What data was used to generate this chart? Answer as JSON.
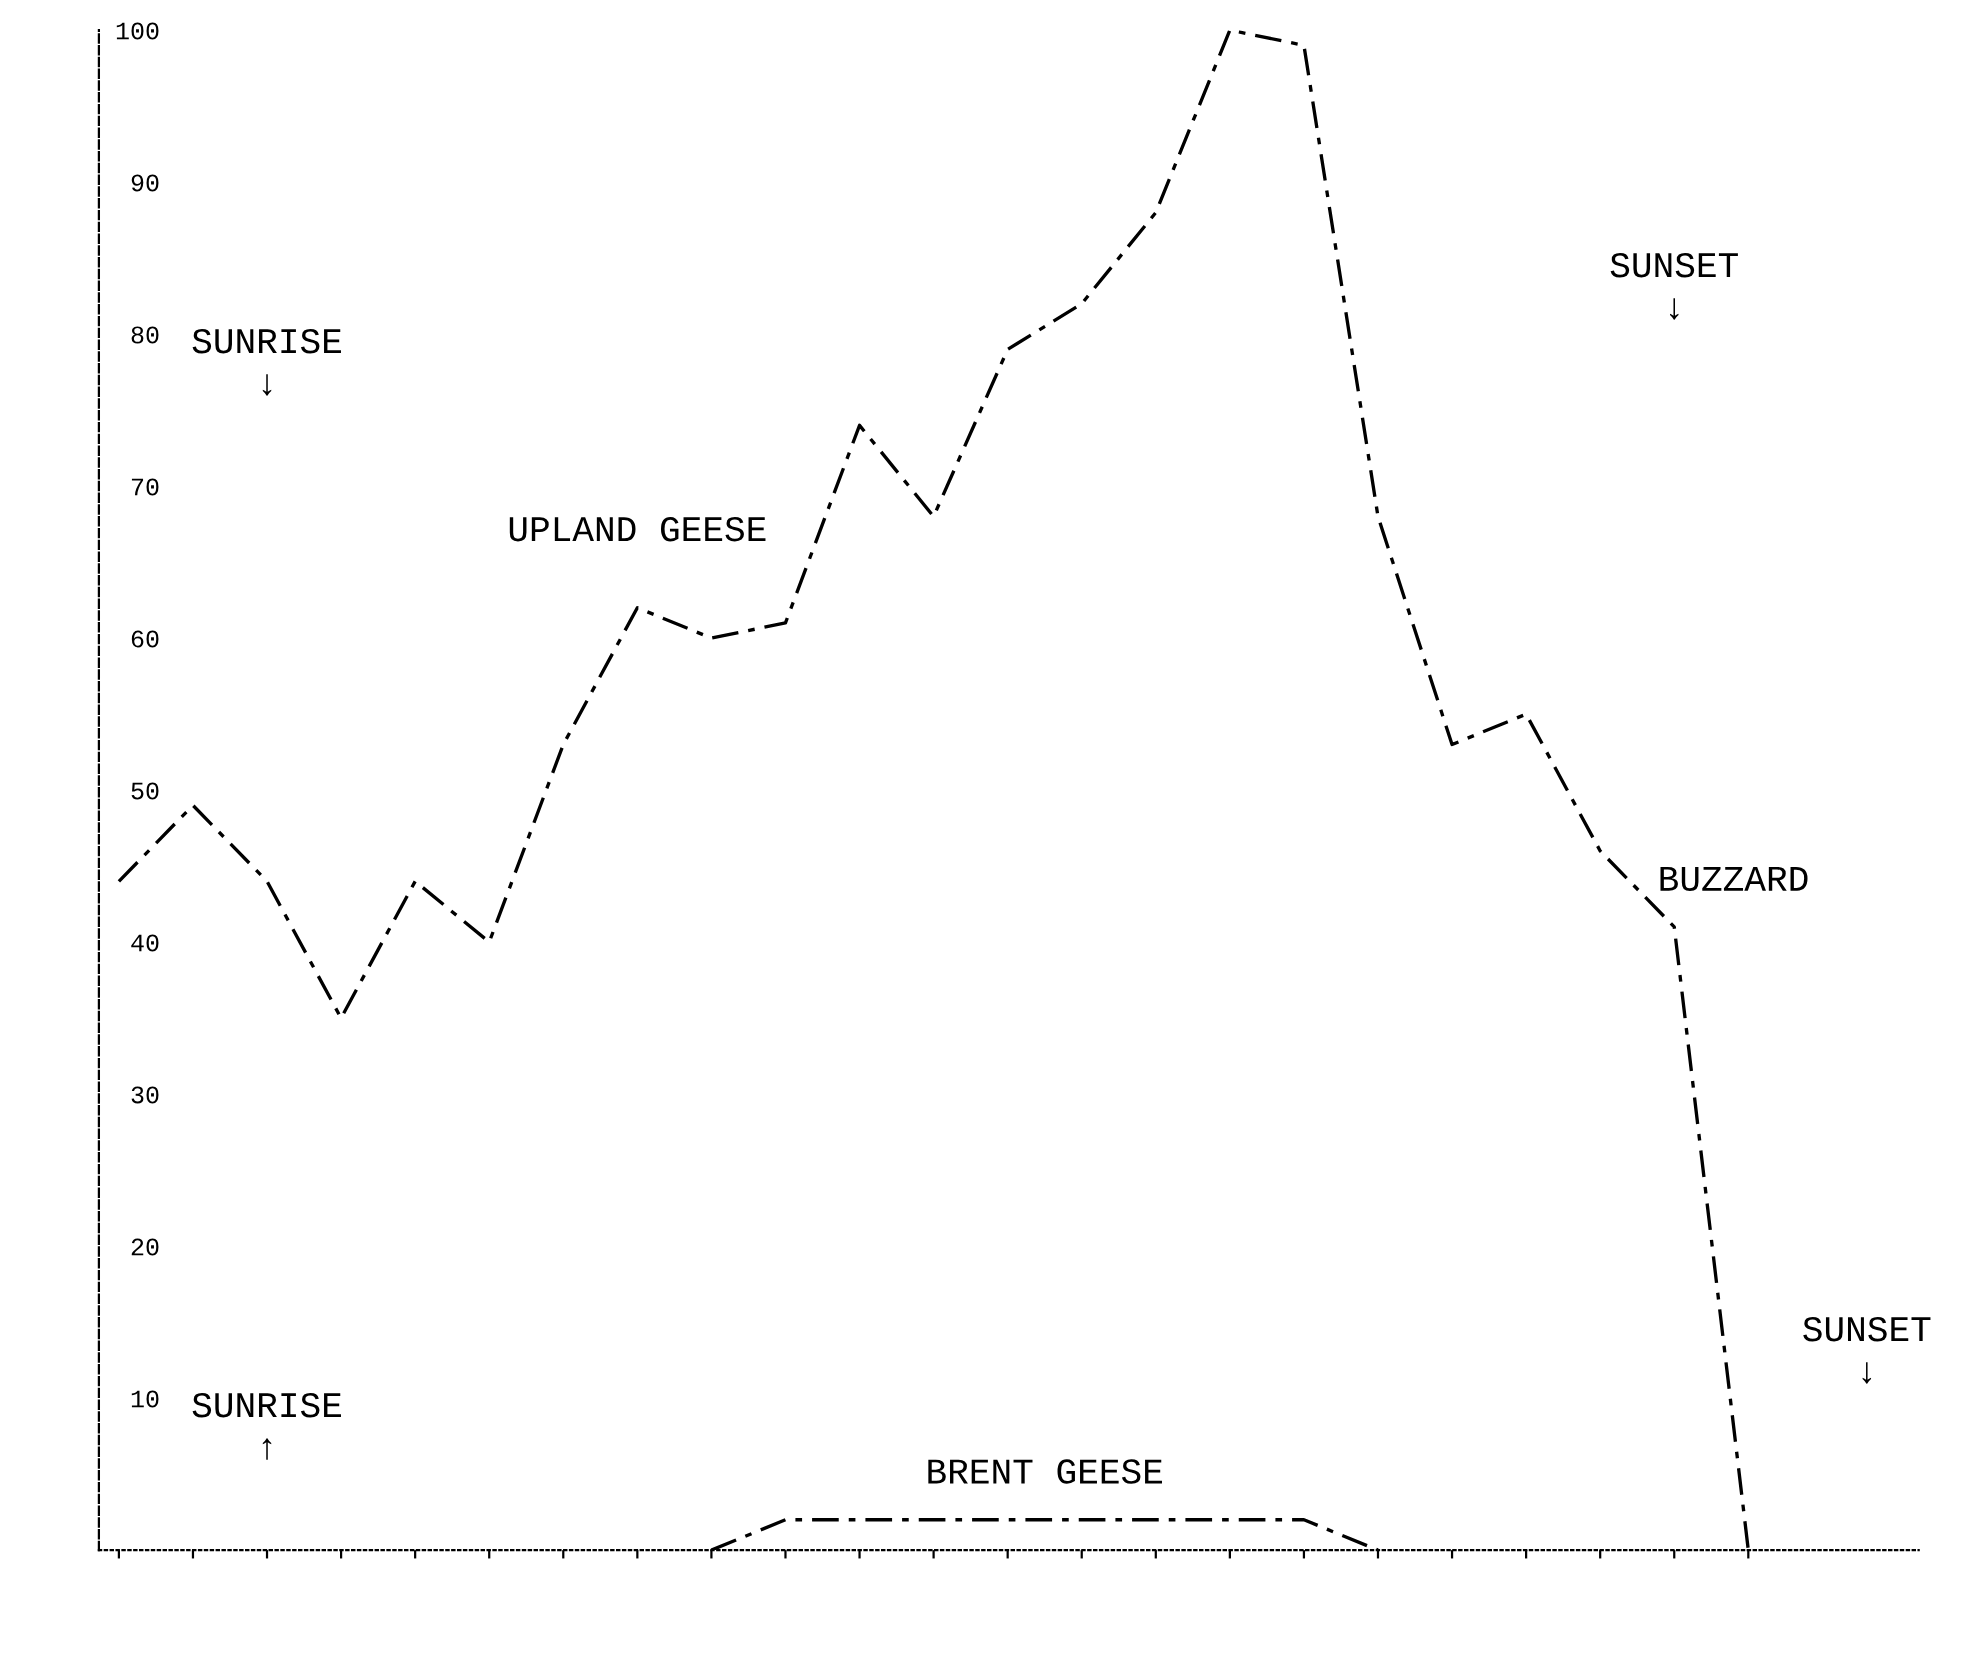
{
  "chart_data": {
    "type": "line",
    "categories": [
      null,
      null,
      null,
      null,
      null,
      null,
      null,
      null,
      null,
      null,
      null,
      null,
      null,
      null,
      null,
      null,
      null,
      null,
      null,
      null,
      null,
      null,
      null
    ],
    "series": [
      {
        "name": "UPLAND GEESE",
        "color": "#000000",
        "values": [
          44,
          49,
          44,
          35,
          44,
          40,
          53,
          62,
          60,
          61,
          74,
          68,
          79,
          82,
          88,
          100,
          99,
          68,
          53,
          55,
          46,
          41,
          0
        ]
      },
      {
        "name": "BRENT GEESE",
        "color": "#000000",
        "values": [
          null,
          null,
          null,
          null,
          null,
          null,
          null,
          null,
          0,
          2,
          2,
          2,
          2,
          2,
          2,
          2,
          2,
          0,
          null,
          null,
          null,
          null,
          null
        ]
      }
    ],
    "ylim": [
      0,
      100
    ],
    "yticks": [
      10,
      20,
      30,
      40,
      50,
      60,
      70,
      80,
      90,
      100
    ],
    "tick_labels": "y",
    "grid": false,
    "legend": false,
    "line_style": "dashed",
    "marker": "none",
    "annotations": [
      "SUNRISE\n↓",
      "SUNSET\n↓",
      "BUZZARD",
      "SUNRISE\n↑",
      "SUNSET\n↓"
    ]
  }
}
